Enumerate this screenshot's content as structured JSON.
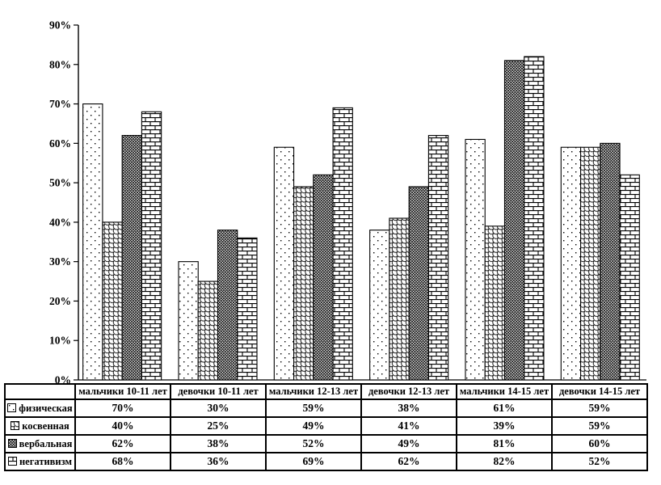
{
  "colors": {
    "foreground": "#000000",
    "background": "#ffffff"
  },
  "chart_data": {
    "type": "bar",
    "categories": [
      "мальчики 10-11 лет",
      "девочки 10-11 лет",
      "мальчики 12-13 лет",
      "девочки 12-13 лет",
      "мальчики 14-15 лет",
      "девочки 14-15 лет"
    ],
    "series": [
      {
        "name": "физическая",
        "pattern": "dots",
        "values": [
          70,
          30,
          59,
          38,
          61,
          59
        ]
      },
      {
        "name": "косвенная",
        "pattern": "weave",
        "values": [
          40,
          25,
          49,
          41,
          39,
          59
        ]
      },
      {
        "name": "вербальная",
        "pattern": "crosshatch",
        "values": [
          62,
          38,
          52,
          49,
          81,
          60
        ]
      },
      {
        "name": "негативизм",
        "pattern": "brick",
        "values": [
          68,
          36,
          69,
          62,
          82,
          52
        ]
      }
    ],
    "xlabel": "",
    "ylabel": "",
    "ylim": [
      0,
      90
    ],
    "ytick_step": 10,
    "ytick_suffix": "%",
    "y_tick_labels": [
      "0%",
      "10%",
      "20%",
      "30%",
      "40%",
      "50%",
      "60%",
      "70%",
      "80%",
      "90%"
    ],
    "grid": false,
    "legend_position": "table-left-column",
    "value_suffix": "%"
  }
}
